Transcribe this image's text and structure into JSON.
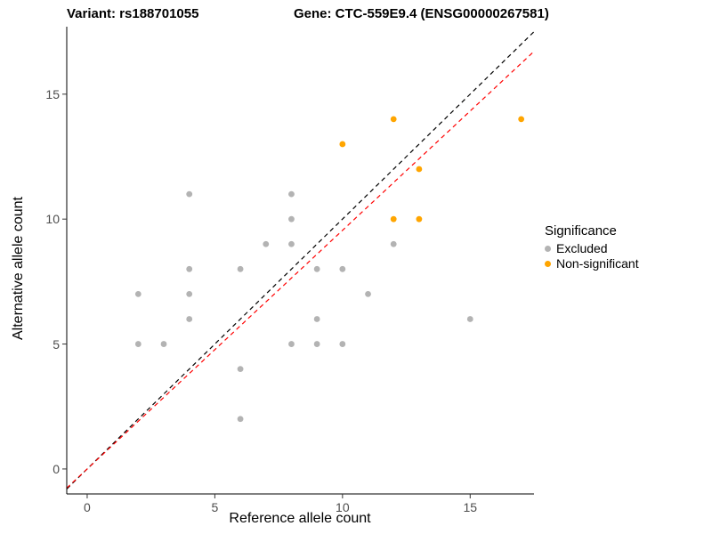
{
  "chart_data": {
    "type": "scatter",
    "title_left": "Variant: rs188701055",
    "title_right": "Gene: CTC-559E9.4 (ENSG00000267581)",
    "xlabel": "Reference allele count",
    "ylabel": "Alternative allele count",
    "xlim": [
      -0.8,
      17.5
    ],
    "ylim": [
      -1,
      17.7
    ],
    "xticks": [
      0,
      5,
      10,
      15
    ],
    "yticks": [
      0,
      5,
      10,
      15
    ],
    "grid": false,
    "legend_position": "right",
    "series": [
      {
        "name": "Excluded",
        "color": "#b3b3b3",
        "points": [
          [
            2,
            7
          ],
          [
            2,
            5
          ],
          [
            3,
            5
          ],
          [
            4,
            11
          ],
          [
            4,
            8
          ],
          [
            4,
            7
          ],
          [
            4,
            6
          ],
          [
            6,
            8
          ],
          [
            6,
            4
          ],
          [
            6,
            2
          ],
          [
            7,
            9
          ],
          [
            8,
            11
          ],
          [
            8,
            10
          ],
          [
            8,
            9
          ],
          [
            8,
            5
          ],
          [
            9,
            8
          ],
          [
            9,
            6
          ],
          [
            9,
            5
          ],
          [
            10,
            8
          ],
          [
            10,
            5
          ],
          [
            11,
            7
          ],
          [
            12,
            9
          ],
          [
            15,
            6
          ]
        ]
      },
      {
        "name": "Non-significant",
        "color": "#FFA500",
        "points": [
          [
            10,
            13
          ],
          [
            12,
            14
          ],
          [
            12,
            10
          ],
          [
            13,
            12
          ],
          [
            13,
            10
          ],
          [
            17,
            14
          ]
        ]
      }
    ],
    "lines": [
      {
        "name": "identity",
        "color": "#000000",
        "dashed": true,
        "slope": 1,
        "intercept": 0
      },
      {
        "name": "fit",
        "color": "#FF0000",
        "dashed": true,
        "slope": 0.955,
        "intercept": 0
      }
    ],
    "legend": {
      "title": "Significance",
      "items": [
        {
          "label": "Excluded",
          "color": "#b3b3b3"
        },
        {
          "label": "Non-significant",
          "color": "#FFA500"
        }
      ]
    }
  }
}
